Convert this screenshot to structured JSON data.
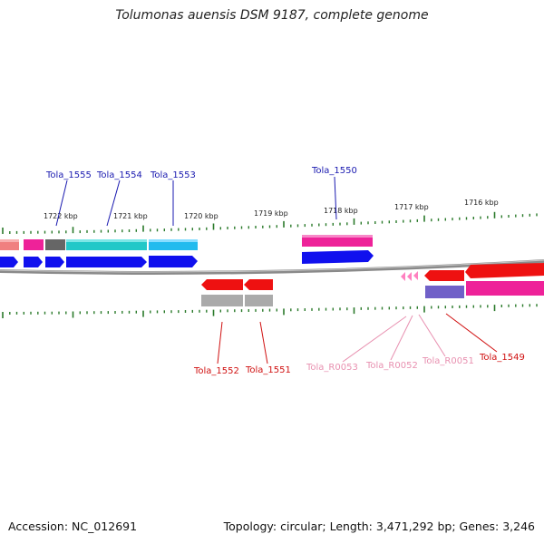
{
  "title": "Tolumonas auensis DSM 9187, complete genome",
  "accession": "Accession: NC_012691",
  "summary": "Topology: circular; Length: 3,471,292 bp; Genes: 3,246",
  "scale_labels": [
    "1722 kbp",
    "1721 kbp",
    "1720 kbp",
    "1719 kbp",
    "1718 kbp",
    "1717 kbp",
    "1716 kbp"
  ],
  "gene_labels": {
    "forward": [
      "Tola_1555",
      "Tola_1554",
      "Tola_1553",
      "Tola_1550"
    ],
    "reverse": [
      "Tola_1552",
      "Tola_1551",
      "Tola_R0053",
      "Tola_R0052",
      "Tola_R0051",
      "Tola_1549"
    ]
  },
  "colors": {
    "backbone": "#808080",
    "tick": "#2a7a2a",
    "forward_label": "#1a1ab0",
    "reverse_label": "#d01010",
    "rna_label": "#e890b0",
    "cds_blue": "#1010ee",
    "cds_red": "#ee1111",
    "rna_pink": "#ff80c0"
  }
}
